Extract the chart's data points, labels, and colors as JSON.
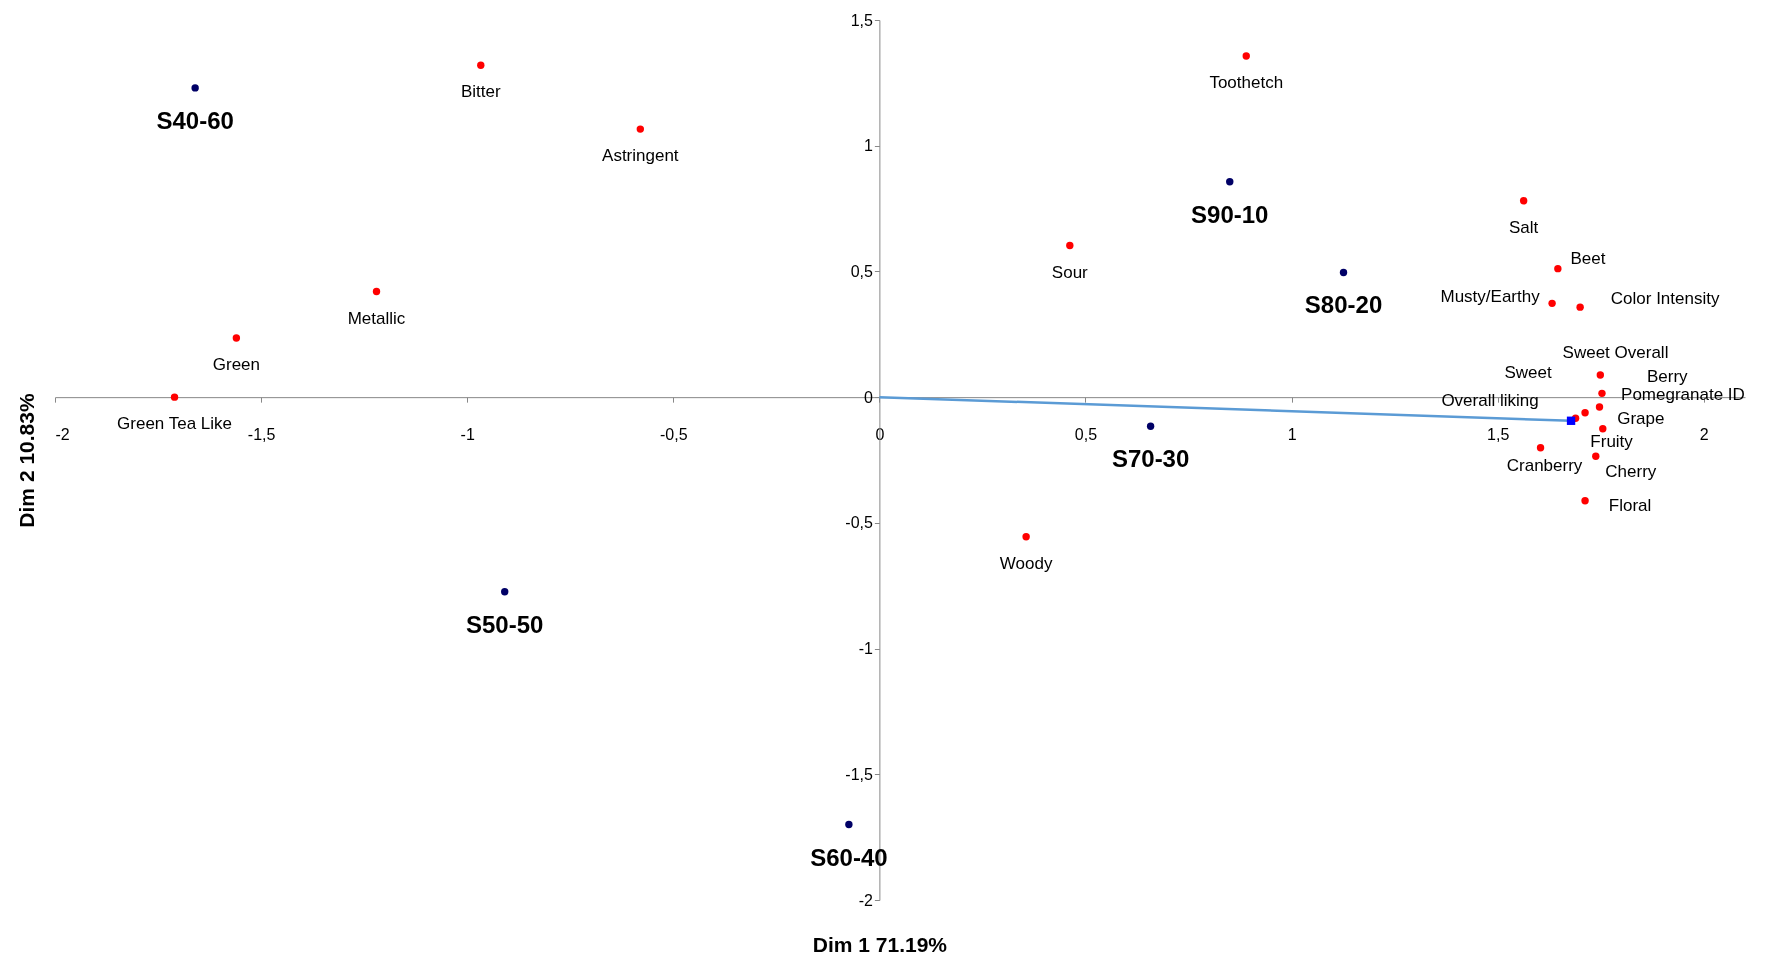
{
  "chart_data": {
    "type": "scatter",
    "xlabel": "Dim 1 71.19%",
    "ylabel": "Dim 2 10.83%",
    "xlim": [
      -2,
      2.1
    ],
    "ylim": [
      -2,
      1.5
    ],
    "xticks": [
      -2,
      {
        "value": -1.5,
        "label": "-1,5"
      },
      -1,
      {
        "value": -0.5,
        "label": "-0,5"
      },
      0,
      {
        "value": 0.5,
        "label": "0,5"
      },
      1,
      {
        "value": 1.5,
        "label": "1,5"
      },
      2
    ],
    "yticks": [
      -2,
      {
        "value": -1.5,
        "label": "-1,5"
      },
      -1,
      {
        "value": -0.5,
        "label": "-0,5"
      },
      0,
      {
        "value": 0.5,
        "label": "0,5"
      },
      1,
      {
        "value": 1.5,
        "label": "1,5"
      }
    ],
    "grid": false,
    "series": [
      {
        "type": "scatter",
        "color": "#ff0000",
        "marker": "circle",
        "x": [
          -0.967,
          -0.58,
          -1.22,
          -1.56,
          -1.71,
          0.89,
          0.462,
          0.356,
          1.563,
          1.646,
          1.632,
          1.7,
          1.749,
          1.753,
          1.747,
          1.712,
          1.689,
          1.755,
          1.604,
          1.738,
          1.712
        ],
        "values": [
          1.32,
          1.066,
          0.42,
          0.235,
          0,
          1.357,
          0.603,
          -0.555,
          0.781,
          0.511,
          0.373,
          0.358,
          0.088,
          0.015,
          -0.039,
          -0.062,
          -0.084,
          -0.126,
          -0.201,
          -0.235,
          -0.412
        ]
      },
      {
        "type": "scatter",
        "color": "#000066",
        "marker": "circle",
        "x": [
          -1.66,
          0.85,
          1.126,
          0.658,
          -0.074,
          -0.909
        ],
        "values": [
          1.23,
          0.857,
          0.496,
          -0.116,
          -1.7,
          -0.774
        ]
      },
      {
        "type": "line",
        "color": "#5b9bd5",
        "marker": "none",
        "x": [
          0,
          1.678
        ],
        "values": [
          0,
          -0.094
        ]
      },
      {
        "type": "scatter",
        "color": "#0000ff",
        "marker": "square",
        "x": [
          1.678
        ],
        "values": [
          -0.094
        ]
      }
    ],
    "annotations": [
      {
        "text": "Bitter",
        "x": -0.967,
        "y": 1.32
      },
      {
        "text": "Astringent",
        "x": -0.58,
        "y": 1.066
      },
      {
        "text": "Metallic",
        "x": -1.22,
        "y": 0.42
      },
      {
        "text": "Green",
        "x": -1.56,
        "y": 0.235
      },
      {
        "text": "Green Tea Like",
        "x": -1.71,
        "y": 0
      },
      {
        "text": "Toothetch",
        "x": 0.89,
        "y": 1.357
      },
      {
        "text": "Sour",
        "x": 0.462,
        "y": 0.603
      },
      {
        "text": "Woody",
        "x": 0.356,
        "y": -0.555
      },
      {
        "text": "Salt",
        "x": 1.563,
        "y": 0.781
      },
      {
        "text": "Beet",
        "x": 1.646,
        "y": 0.511
      },
      {
        "text": "Musty/Earthy",
        "x": 1.632,
        "y": 0.373
      },
      {
        "text": "Color Intensity",
        "x": 1.7,
        "y": 0.358
      },
      {
        "text": "Berry",
        "x": 1.749,
        "y": 0.088
      },
      {
        "text": "Pomegranate ID",
        "x": 1.753,
        "y": 0.015
      },
      {
        "text": "Sweet Overall",
        "x": 1.747,
        "y": -0.039
      },
      {
        "text": "Sweet",
        "x": 1.712,
        "y": -0.062
      },
      {
        "text": "Fruity",
        "x": 1.689,
        "y": -0.084
      },
      {
        "text": "Grape",
        "x": 1.755,
        "y": -0.126
      },
      {
        "text": "Cranberry",
        "x": 1.604,
        "y": -0.201
      },
      {
        "text": "Cherry",
        "x": 1.738,
        "y": -0.235
      },
      {
        "text": "Floral",
        "x": 1.712,
        "y": -0.412
      },
      {
        "text": "S40-60",
        "x": -1.66,
        "y": 1.23
      },
      {
        "text": "S90-10",
        "x": 0.85,
        "y": 0.857
      },
      {
        "text": "S80-20",
        "x": 1.126,
        "y": 0.496
      },
      {
        "text": "S70-30",
        "x": 0.658,
        "y": -0.116
      },
      {
        "text": "S60-40",
        "x": -0.074,
        "y": -1.7
      },
      {
        "text": "S50-50",
        "x": -0.909,
        "y": -0.774
      },
      {
        "text": "Overall liking",
        "x": 1.678,
        "y": -0.094
      }
    ]
  }
}
